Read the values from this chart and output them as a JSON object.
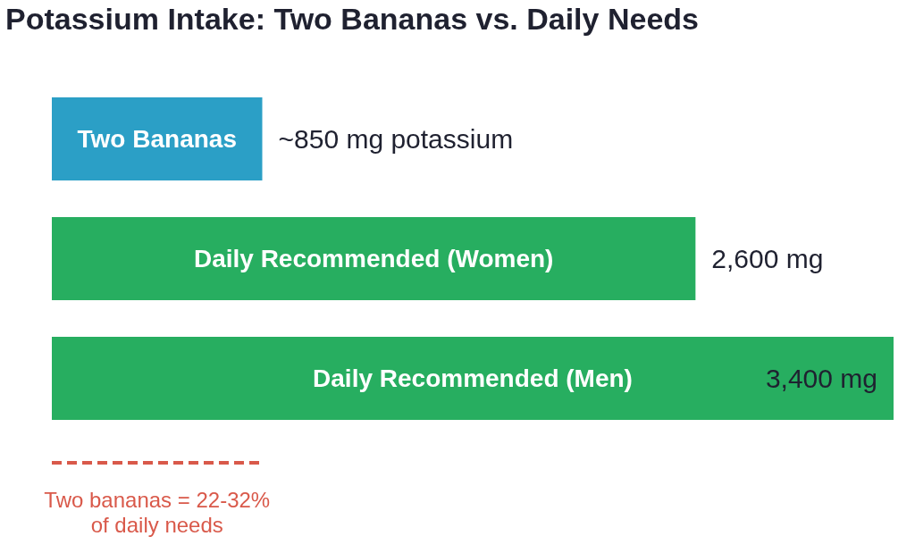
{
  "chart_data": {
    "type": "bar",
    "orientation": "horizontal",
    "title": "Potassium Intake: Two Bananas vs. Daily Needs",
    "categories": [
      "Two Bananas",
      "Daily Recommended (Women)",
      "Daily Recommended (Men)"
    ],
    "values": [
      850,
      2600,
      3400
    ],
    "value_labels": [
      "~850 mg potassium",
      "2,600 mg",
      "3,400 mg"
    ],
    "colors": [
      "#2b9fc6",
      "#27ae60",
      "#27ae60"
    ],
    "annotations": [
      "Two bananas = 22-32%\nof daily needs"
    ]
  }
}
